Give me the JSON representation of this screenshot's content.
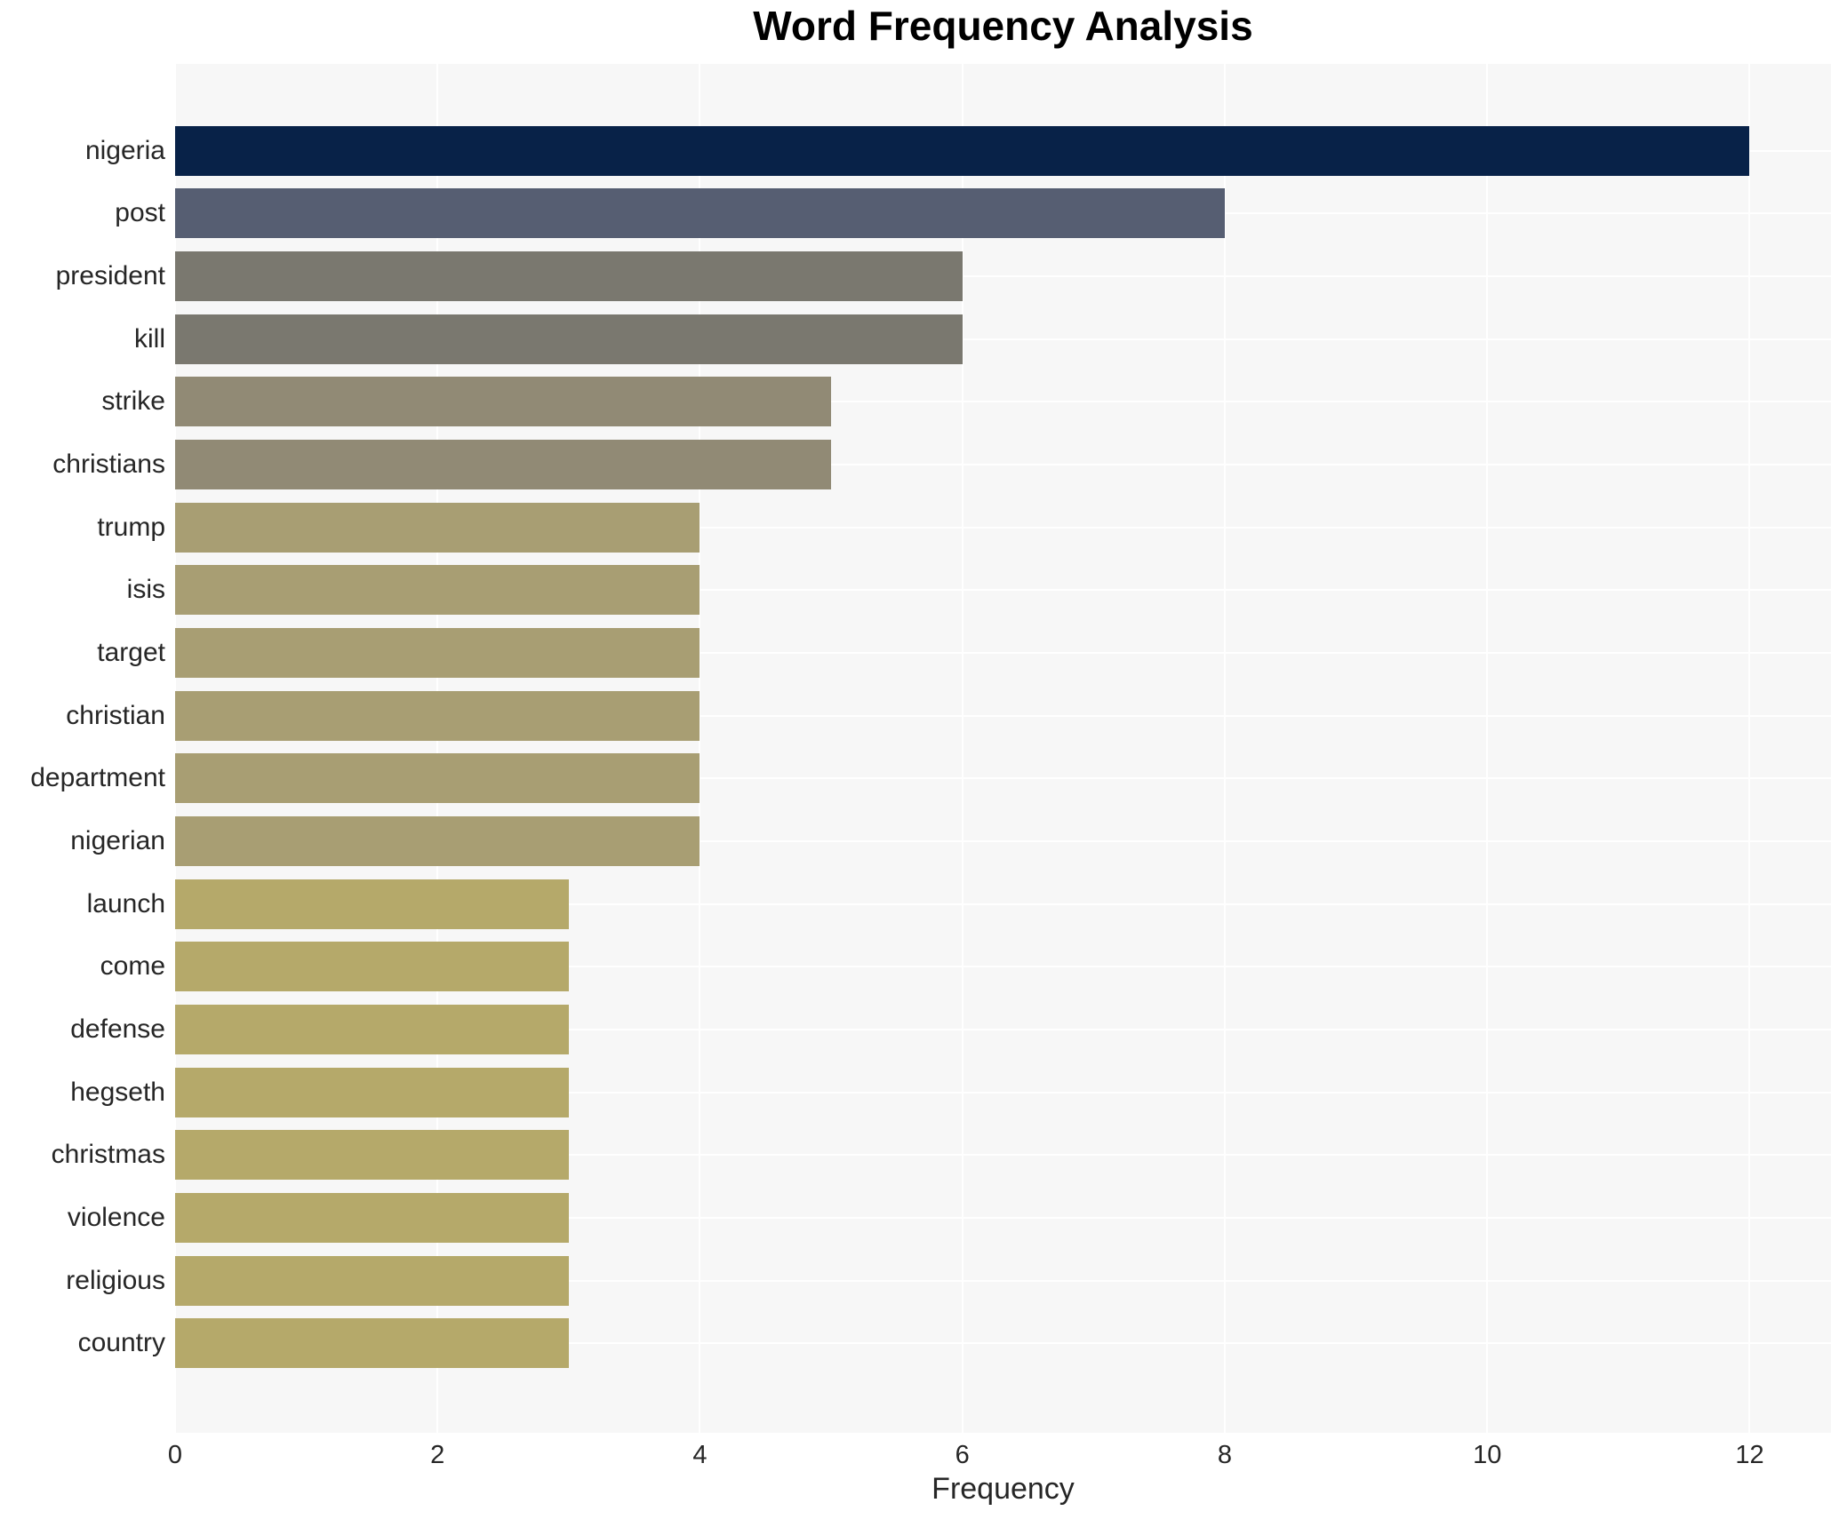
{
  "chart_data": {
    "type": "bar",
    "orientation": "horizontal",
    "title": "Word Frequency Analysis",
    "xlabel": "Frequency",
    "ylabel": "",
    "categories": [
      "nigeria",
      "post",
      "president",
      "kill",
      "strike",
      "christians",
      "trump",
      "isis",
      "target",
      "christian",
      "department",
      "nigerian",
      "launch",
      "come",
      "defense",
      "hegseth",
      "christmas",
      "violence",
      "religious",
      "country"
    ],
    "values": [
      12,
      8,
      6,
      6,
      5,
      5,
      4,
      4,
      4,
      4,
      4,
      4,
      3,
      3,
      3,
      3,
      3,
      3,
      3,
      3
    ],
    "bar_colors": [
      "#082248",
      "#565e72",
      "#7a786f",
      "#7a786f",
      "#918a75",
      "#918a75",
      "#a89e73",
      "#a89e73",
      "#a89e73",
      "#a89e73",
      "#a89e73",
      "#a89e73",
      "#b5a96a",
      "#b5a96a",
      "#b5a96a",
      "#b5a96a",
      "#b5a96a",
      "#b5a96a",
      "#b5a96a",
      "#b5a96a"
    ],
    "xticks": [
      0,
      2,
      4,
      6,
      8,
      10,
      12
    ],
    "xlim": [
      0,
      12.62
    ],
    "grid": true,
    "legend": false,
    "plot_bg": "#f7f7f7",
    "grid_color": "#ffffff",
    "text_color": "#262626"
  }
}
